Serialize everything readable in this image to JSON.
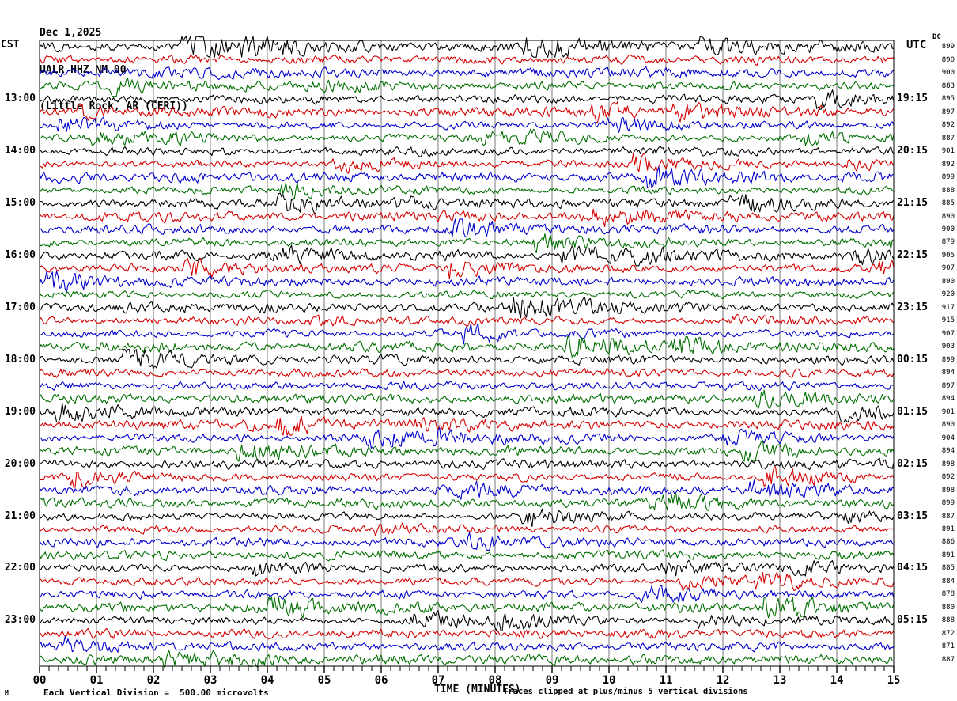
{
  "header": {
    "date": "Dec 1,2025",
    "station": "UALR HHZ NM 00",
    "location": "(Little Rock, AR (CERI))"
  },
  "left_axis": {
    "label": "CST"
  },
  "right_axis": {
    "label": "UTC",
    "dc_label": "DC"
  },
  "footer": {
    "watermark": "M",
    "scale_note": "Each Vertical Division =  500.00 microvolts",
    "xlabel": "TIME (MINUTES)",
    "clip_note": "Traces clipped at plus/minus 5 vertical divisions"
  },
  "colors": {
    "trace_cycle": [
      "#000000",
      "#d40000",
      "#0000cc",
      "#006e00"
    ],
    "grid": "#7a7a7a",
    "frame": "#000000"
  },
  "chart_data": {
    "type": "line",
    "subtype": "helicorder-seismogram",
    "title": "UALR HHZ NM 00 (Little Rock, AR (CERI)) — Dec 1,2025",
    "xlabel": "TIME (MINUTES)",
    "x_range_minutes": [
      0,
      15
    ],
    "x_ticks": [
      "00",
      "01",
      "02",
      "03",
      "04",
      "05",
      "06",
      "07",
      "08",
      "09",
      "10",
      "11",
      "12",
      "13",
      "14",
      "15"
    ],
    "minor_ticks_per_minute": 5,
    "minutes_per_row": 15,
    "row_count": 48,
    "waveform_note": "continuous ambient seismic noise, clipped at plus/minus 5 vertical divisions; one vertical division = 500.00 microvolts",
    "rows": [
      {
        "dc": 899
      },
      {
        "dc": 890
      },
      {
        "dc": 900
      },
      {
        "dc": 883
      },
      {
        "dc": 895
      },
      {
        "dc": 897
      },
      {
        "dc": 892
      },
      {
        "dc": 887
      },
      {
        "dc": 901
      },
      {
        "dc": 892
      },
      {
        "dc": 899
      },
      {
        "dc": 888
      },
      {
        "dc": 885
      },
      {
        "dc": 890
      },
      {
        "dc": 900
      },
      {
        "dc": 879
      },
      {
        "dc": 905
      },
      {
        "dc": 907
      },
      {
        "dc": 890
      },
      {
        "dc": 920
      },
      {
        "dc": 917
      },
      {
        "dc": 915
      },
      {
        "dc": 907
      },
      {
        "dc": 903
      },
      {
        "dc": 899
      },
      {
        "dc": 894
      },
      {
        "dc": 897
      },
      {
        "dc": 894
      },
      {
        "dc": 901
      },
      {
        "dc": 890
      },
      {
        "dc": 904
      },
      {
        "dc": 894
      },
      {
        "dc": 898
      },
      {
        "dc": 892
      },
      {
        "dc": 898
      },
      {
        "dc": 899
      },
      {
        "dc": 887
      },
      {
        "dc": 891
      },
      {
        "dc": 886
      },
      {
        "dc": 891
      },
      {
        "dc": 885
      },
      {
        "dc": 884
      },
      {
        "dc": 878
      },
      {
        "dc": 880
      },
      {
        "dc": 888
      },
      {
        "dc": 872
      },
      {
        "dc": 871
      },
      {
        "dc": 887
      }
    ],
    "hour_labels": [
      {
        "row": 4,
        "cst": "13:00",
        "utc": "19:15"
      },
      {
        "row": 8,
        "cst": "14:00",
        "utc": "20:15"
      },
      {
        "row": 12,
        "cst": "15:00",
        "utc": "21:15"
      },
      {
        "row": 16,
        "cst": "16:00",
        "utc": "22:15"
      },
      {
        "row": 20,
        "cst": "17:00",
        "utc": "23:15"
      },
      {
        "row": 24,
        "cst": "18:00",
        "utc": "00:15"
      },
      {
        "row": 28,
        "cst": "19:00",
        "utc": "01:15"
      },
      {
        "row": 32,
        "cst": "20:00",
        "utc": "02:15"
      },
      {
        "row": 36,
        "cst": "21:00",
        "utc": "03:15"
      },
      {
        "row": 40,
        "cst": "22:00",
        "utc": "04:15"
      },
      {
        "row": 44,
        "cst": "23:00",
        "utc": "05:15"
      }
    ]
  }
}
